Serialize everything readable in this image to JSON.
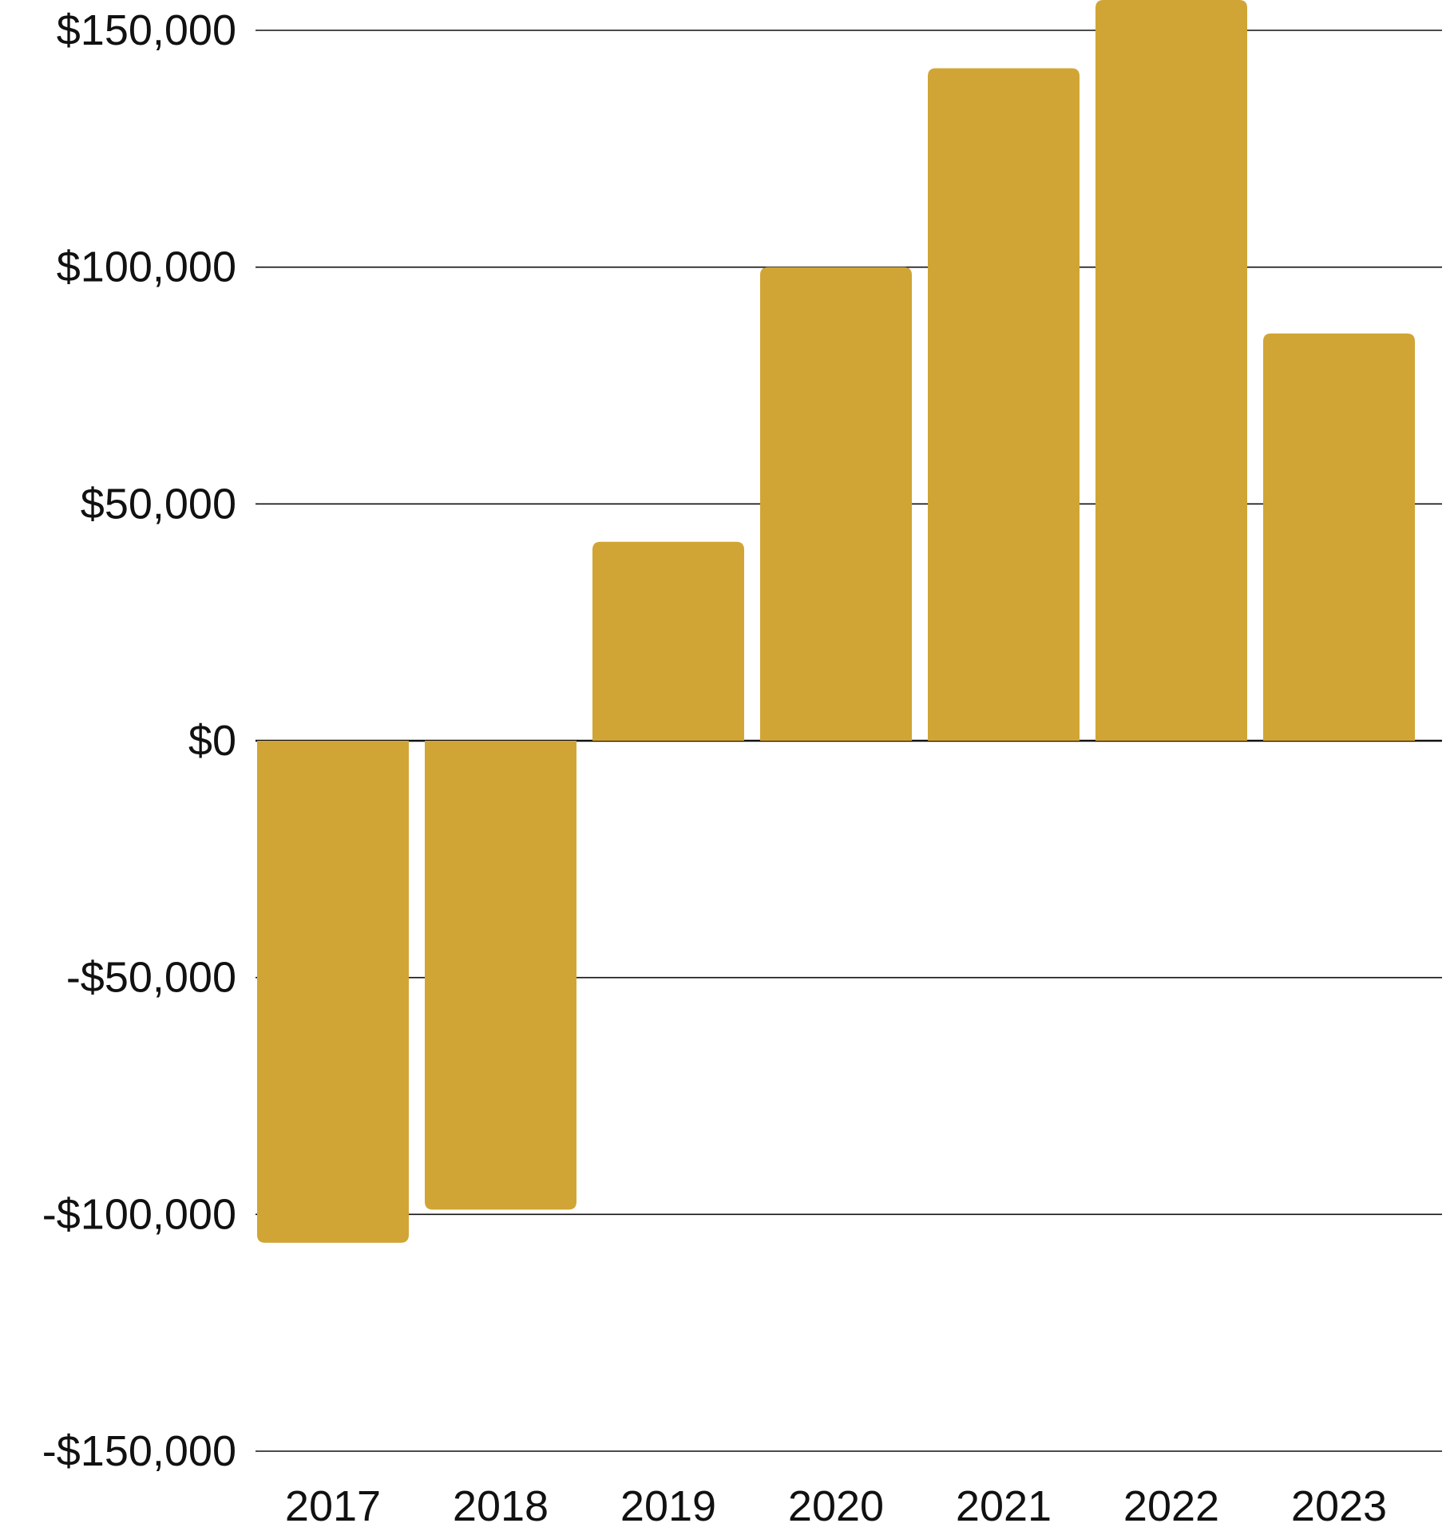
{
  "chart_data": {
    "type": "bar",
    "categories": [
      "2017",
      "2018",
      "2019",
      "2020",
      "2021",
      "2022",
      "2023"
    ],
    "values": [
      -106000,
      -99000,
      42000,
      100000,
      142000,
      160000,
      86000
    ],
    "ylim": [
      -150000,
      150000
    ],
    "yticks": [
      150000,
      100000,
      50000,
      0,
      -50000,
      -100000,
      -150000
    ],
    "ytick_labels": [
      "$150,000",
      "$100,000",
      "$50,000",
      "$0",
      "-$50,000",
      "-$100,000",
      "-$150,000"
    ],
    "grid": true,
    "legend": "none",
    "bar_color": "#D1A535",
    "grid_color": "#111111",
    "text_color": "#111111"
  }
}
